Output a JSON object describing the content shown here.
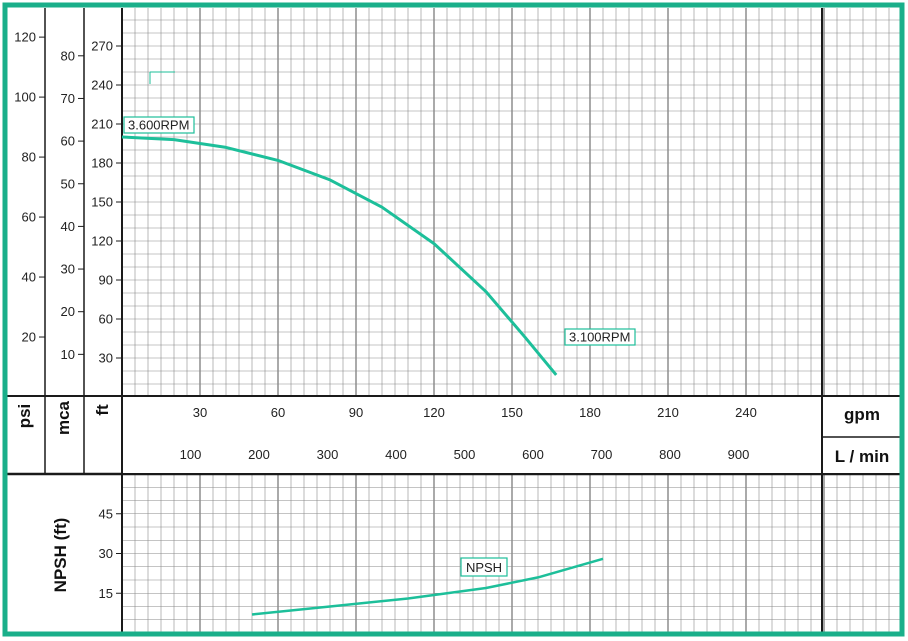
{
  "colors": {
    "frame": "#1aaf8a",
    "curve": "#1dbf9a",
    "grid": "#8a8a8a",
    "axis": "#1a1a1a"
  },
  "axes": {
    "psi": {
      "label": "psi",
      "ticks": [
        "20",
        "40",
        "60",
        "80",
        "100",
        "120"
      ]
    },
    "mca": {
      "label": "mca",
      "ticks": [
        "10",
        "20",
        "30",
        "40",
        "50",
        "60",
        "70",
        "80"
      ]
    },
    "ft": {
      "label": "ft",
      "ticks": [
        "30",
        "60",
        "90",
        "120",
        "150",
        "180",
        "210",
        "240",
        "270"
      ]
    },
    "gpm": {
      "label": "gpm",
      "ticks": [
        "30",
        "60",
        "90",
        "120",
        "150",
        "180",
        "210",
        "240"
      ]
    },
    "lmin": {
      "label": "L / min",
      "ticks": [
        "100",
        "200",
        "300",
        "400",
        "500",
        "600",
        "700",
        "800",
        "900"
      ]
    },
    "npsh": {
      "label": "NPSH (ft)",
      "ticks": [
        "15",
        "30",
        "45"
      ]
    }
  },
  "chart_data": [
    {
      "type": "line",
      "xlabel": "gpm",
      "ylabel": "ft",
      "xlim": [
        0,
        270
      ],
      "ylim": [
        0,
        290
      ],
      "grid": true,
      "series": [
        {
          "name": "3.600RPM",
          "x": [
            0,
            20,
            40,
            60,
            80,
            100,
            120,
            140,
            155,
            167
          ],
          "y": [
            200,
            198,
            192,
            182,
            167,
            146,
            118,
            81,
            46,
            17
          ]
        }
      ],
      "annotations": [
        "3.600RPM",
        "3.100RPM"
      ]
    },
    {
      "type": "line",
      "xlabel": "gpm",
      "ylabel": "NPSH (ft)",
      "xlim": [
        0,
        270
      ],
      "ylim": [
        0,
        60
      ],
      "grid": true,
      "series": [
        {
          "name": "NPSH",
          "x": [
            50,
            80,
            110,
            140,
            160,
            185
          ],
          "y": [
            7,
            10,
            13,
            17,
            21,
            28
          ]
        }
      ]
    }
  ]
}
